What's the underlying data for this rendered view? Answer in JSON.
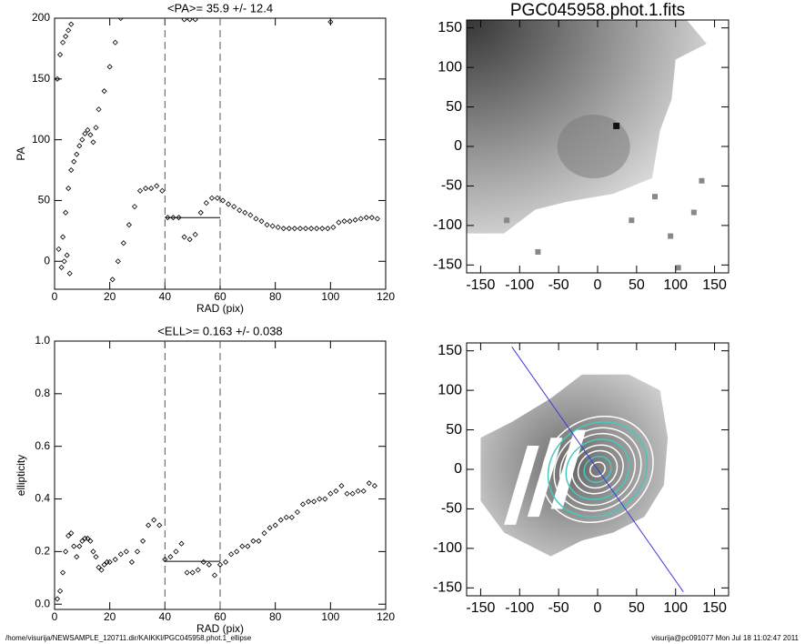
{
  "chart_data": [
    {
      "type": "scatter",
      "title": "<PA>=  35.9 +/-  12.4",
      "xlabel": "RAD (pix)",
      "ylabel": "PA",
      "xlim": [
        0,
        120
      ],
      "ylim": [
        -23,
        200
      ],
      "xticks": [
        0,
        20,
        40,
        60,
        80,
        100,
        120
      ],
      "yticks": [
        0,
        50,
        100,
        150,
        200
      ],
      "reference_lines": [
        40,
        60
      ],
      "mean_line": {
        "x": [
          40,
          60
        ],
        "y": 35.9
      },
      "x": [
        1,
        2,
        3,
        4,
        5,
        6,
        1.5,
        2.5,
        3.5,
        4.5,
        5.5,
        3,
        4,
        5,
        6,
        7,
        8,
        9,
        10,
        11,
        12,
        13,
        14,
        15,
        16,
        18,
        20,
        22,
        24,
        21,
        23,
        25,
        27,
        29,
        31,
        33,
        35,
        37,
        39,
        41,
        43,
        45,
        47,
        49,
        51,
        53,
        55,
        57,
        59,
        61,
        63,
        65,
        67,
        69,
        71,
        73,
        75,
        77,
        79,
        81,
        83,
        85,
        87,
        89,
        91,
        93,
        95,
        97,
        99,
        101,
        103,
        105,
        107,
        109,
        111,
        113,
        115,
        117,
        47,
        49,
        51,
        100
      ],
      "values": [
        150,
        170,
        180,
        185,
        190,
        195,
        10,
        -5,
        0,
        5,
        -10,
        20,
        40,
        60,
        75,
        82,
        88,
        95,
        100,
        105,
        108,
        104,
        98,
        110,
        125,
        140,
        160,
        180,
        200,
        -15,
        0,
        15,
        30,
        45,
        58,
        60,
        60,
        62,
        58,
        36,
        36,
        36,
        20,
        18,
        22,
        40,
        48,
        52,
        52,
        50,
        47,
        45,
        42,
        40,
        38,
        35,
        33,
        30,
        29,
        28,
        27,
        27,
        27,
        27,
        27,
        27,
        27,
        27,
        27,
        28,
        32,
        33,
        33,
        34,
        35,
        36,
        36,
        35,
        199,
        199,
        199,
        197
      ]
    },
    {
      "type": "scatter",
      "title": "<ELL>= 0.163 +/-  0.038",
      "xlabel": "RAD (pix)",
      "ylabel": "ellipticity",
      "xlim": [
        0,
        120
      ],
      "ylim": [
        -0.02,
        1.0
      ],
      "xticks": [
        0,
        20,
        40,
        60,
        80,
        100,
        120
      ],
      "yticks": [
        {
          "value": 0,
          "label": "0.0"
        },
        0.2,
        0.4,
        0.6,
        0.8,
        {
          "value": 1,
          "label": "1.0"
        }
      ],
      "reference_lines": [
        40,
        60
      ],
      "mean_line": {
        "x": [
          40,
          60
        ],
        "y": 0.163
      },
      "x": [
        1,
        2,
        3,
        4,
        5,
        6,
        7,
        8,
        9,
        10,
        11,
        12,
        13,
        14,
        15,
        16,
        17,
        18,
        19,
        20,
        22,
        24,
        26,
        28,
        30,
        32,
        34,
        36,
        38,
        40,
        42,
        44,
        46,
        48,
        50,
        52,
        54,
        56,
        58,
        60,
        62,
        64,
        66,
        68,
        70,
        72,
        74,
        76,
        78,
        80,
        82,
        84,
        86,
        88,
        90,
        92,
        94,
        96,
        98,
        100,
        102,
        104,
        106,
        108,
        110,
        112,
        114,
        116
      ],
      "values": [
        0.02,
        0.05,
        0.12,
        0.2,
        0.26,
        0.27,
        0.22,
        0.18,
        0.22,
        0.24,
        0.25,
        0.25,
        0.24,
        0.2,
        0.18,
        0.14,
        0.13,
        0.15,
        0.16,
        0.16,
        0.17,
        0.19,
        0.2,
        0.16,
        0.2,
        0.24,
        0.3,
        0.32,
        0.3,
        0.17,
        0.18,
        0.2,
        0.23,
        0.12,
        0.12,
        0.13,
        0.16,
        0.15,
        0.11,
        0.15,
        0.16,
        0.19,
        0.2,
        0.22,
        0.22,
        0.24,
        0.24,
        0.27,
        0.29,
        0.3,
        0.32,
        0.33,
        0.33,
        0.35,
        0.38,
        0.39,
        0.39,
        0.4,
        0.4,
        0.42,
        0.43,
        0.45,
        0.42,
        0.42,
        0.43,
        0.43,
        0.46,
        0.45
      ]
    },
    {
      "type": "image",
      "title": "PGC045958.phot.1.fits",
      "xlim": [
        -168,
        168
      ],
      "ylim": [
        -160,
        160
      ],
      "xticks": [
        -150,
        -100,
        -50,
        0,
        50,
        100,
        150
      ],
      "yticks": [
        -150,
        -100,
        -50,
        0,
        50,
        100,
        150
      ]
    },
    {
      "type": "image",
      "variant": "residual",
      "xlim": [
        -168,
        168
      ],
      "ylim": [
        -160,
        160
      ],
      "xticks": [
        -150,
        -100,
        -50,
        0,
        50,
        100,
        150
      ],
      "yticks": [
        -150,
        -100,
        -50,
        0,
        50,
        100,
        150
      ]
    }
  ],
  "footer": {
    "left": "/home/visurija/NEWSAMPLE_120711.dir/KAIKKI/PGC045958.phot.1_ellipse",
    "right": "visurija@pc091077  Mon Jul 18 11:02:47 2011"
  }
}
